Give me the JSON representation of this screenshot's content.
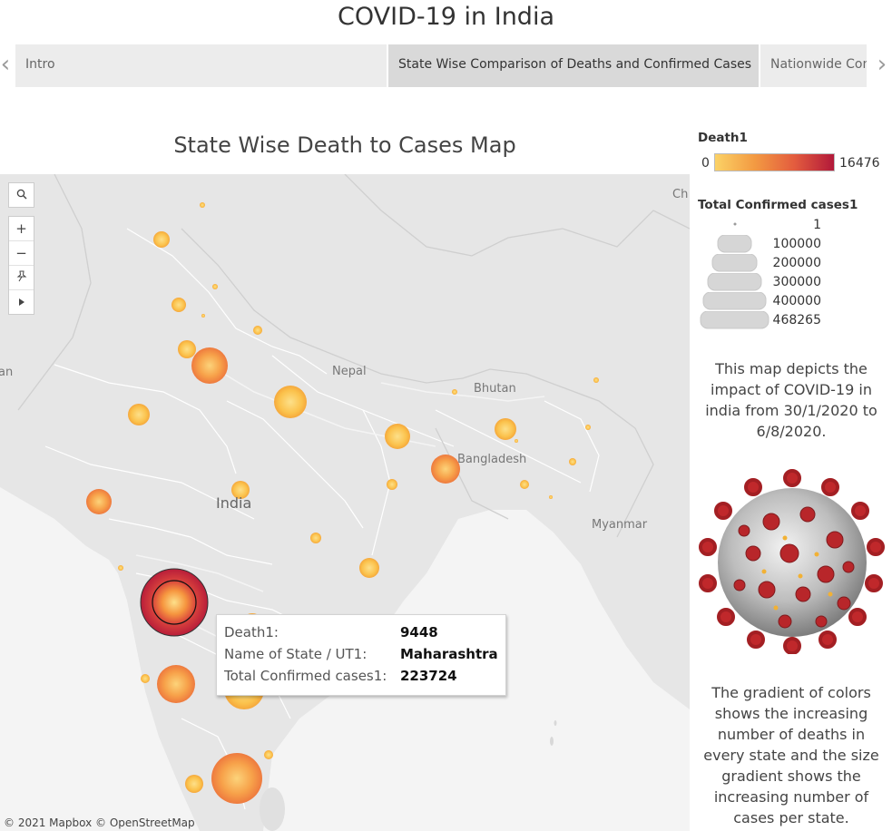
{
  "dashboard": {
    "title": "COVID-19 in India"
  },
  "story": {
    "tabs": [
      {
        "label": "Intro",
        "active": false
      },
      {
        "label": "State Wise Comparison of Deaths and Confirmed Cases",
        "active": true
      },
      {
        "label": "Nationwide Con",
        "active": false
      }
    ],
    "prev_icon": "chevron-left-icon",
    "next_icon": "chevron-right-icon"
  },
  "map": {
    "title": "State Wise Death to Cases Map",
    "labels": {
      "nepal": "Nepal",
      "bhutan": "Bhutan",
      "bangladesh": "Bangladesh",
      "india": "India",
      "myanmar": "Myanmar",
      "left_edge": "an",
      "right_edge": "Ch"
    },
    "copyright": "© 2021 Mapbox © OpenStreetMap",
    "tools": {
      "search_icon": "search-icon",
      "zoom_in": "+",
      "zoom_out": "−",
      "pin_icon": "pin-icon",
      "play_icon": "play-icon"
    }
  },
  "tooltip": {
    "rows": [
      {
        "key": "Death1:",
        "value": "9448"
      },
      {
        "key": "Name of State / UT1:",
        "value": "Maharashtra"
      },
      {
        "key": "Total Confirmed cases1:",
        "value": "223724"
      }
    ]
  },
  "legend": {
    "color": {
      "title": "Death1",
      "min": "0",
      "max": "16476",
      "colors": [
        "#fbd266",
        "#f39a42",
        "#e35c3e",
        "#b2193a"
      ]
    },
    "size": {
      "title": "Total Confirmed cases1",
      "items": [
        "1",
        "100000",
        "200000",
        "300000",
        "400000",
        "468265"
      ]
    }
  },
  "description": {
    "text1": "This map depicts the impact of COVID-19 in india from 30/1/2020 to 6/8/2020.",
    "text2": "The gradient of colors shows the increasing number of deaths in every state and the size gradient shows the increasing number of cases per state."
  }
}
